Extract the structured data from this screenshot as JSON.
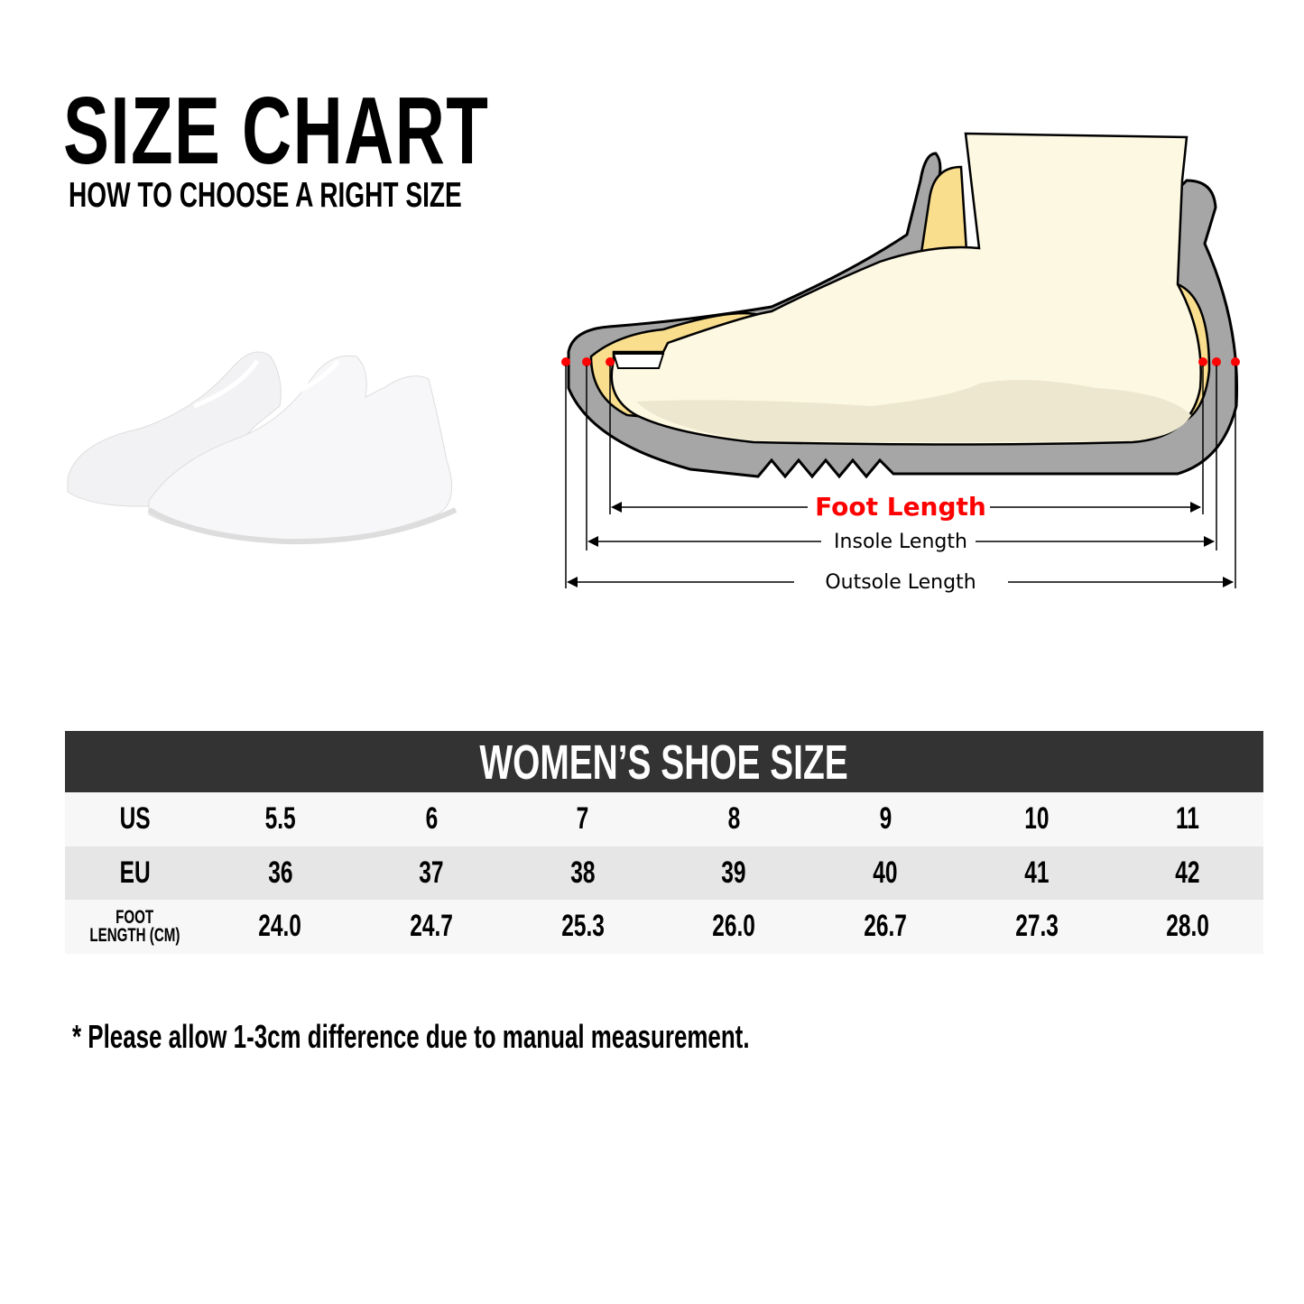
{
  "header": {
    "title": "SIZE CHART",
    "subtitle": "HOW TO CHOOSE A RIGHT SIZE"
  },
  "diagram": {
    "foot_length_label": "Foot Length",
    "insole_length_label": "Insole Length",
    "outsole_length_label": "Outsole Length",
    "colors": {
      "foot_length": "#ff0000",
      "sole": "#a6a6a6",
      "insole": "#f9de8e",
      "foot": "#fdf8e2"
    }
  },
  "table": {
    "title": "WOMEN’S SHOE SIZE",
    "rows": [
      {
        "label": "US",
        "values": [
          "5.5",
          "6",
          "7",
          "8",
          "9",
          "10",
          "11"
        ]
      },
      {
        "label": "EU",
        "values": [
          "36",
          "37",
          "38",
          "39",
          "40",
          "41",
          "42"
        ]
      },
      {
        "label_line1": "FOOT",
        "label_line2": "LENGTH (CM)",
        "values": [
          "24.0",
          "24.7",
          "25.3",
          "26.0",
          "26.7",
          "27.3",
          "28.0"
        ]
      }
    ]
  },
  "note": "* Please allow 1-3cm difference due to manual measurement."
}
